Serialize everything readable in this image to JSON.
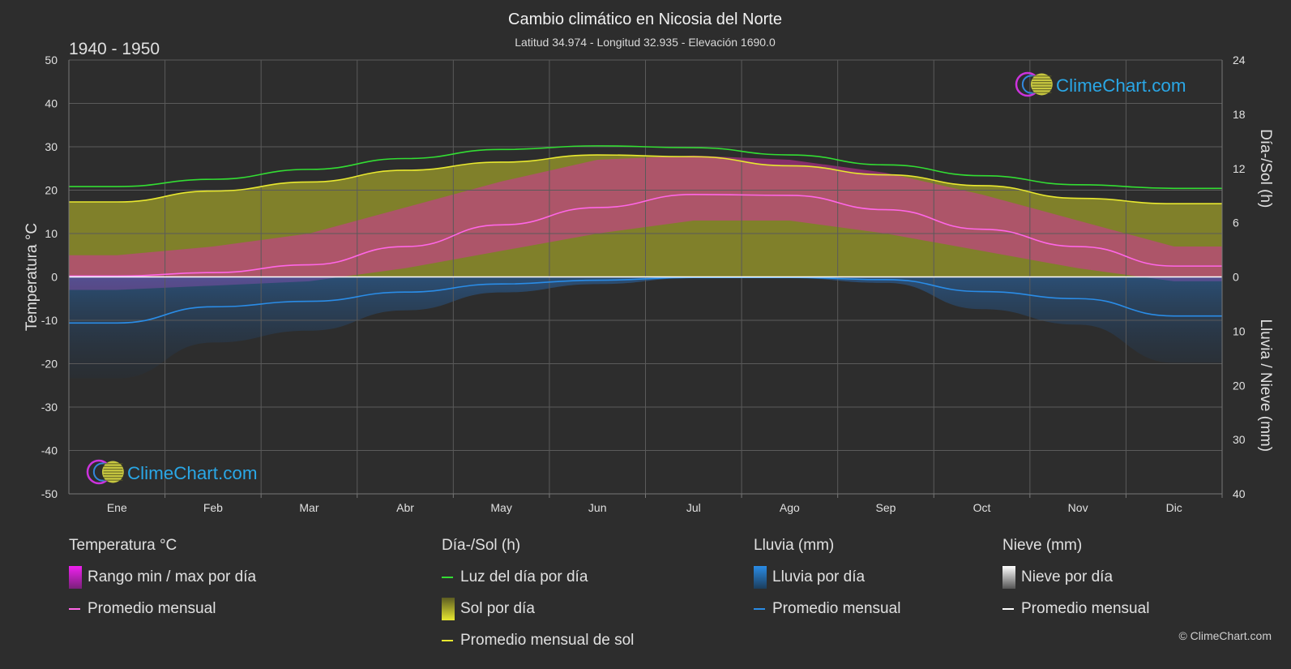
{
  "header": {
    "title": "Cambio climático en Nicosia del Norte",
    "subtitle": "Latitud 34.974 - Longitud 32.935 - Elevación 1690.0",
    "period": "1940 - 1950"
  },
  "brand": {
    "text": "ClimeChart.com",
    "copyright": "© ClimeChart.com"
  },
  "colors": {
    "background": "#2d2d2d",
    "daylight": "#33dd33",
    "sunshine_fill": "#9c9c2a",
    "sunshine_line": "#e8e830",
    "temp_range": "#d2329c",
    "temp_avg": "#ff66e6",
    "rain": "#1e6fc8",
    "rain_avg": "#2a8ce6",
    "snow_avg": "#ffffff",
    "brand": "#2aa7e6"
  },
  "legend": {
    "temp": {
      "title": "Temperatura °C",
      "range": "Rango min / max por día",
      "avg": "Promedio mensual"
    },
    "sun": {
      "title": "Día-/Sol (h)",
      "daylight": "Luz del día por día",
      "sunshine": "Sol por día",
      "sunshine_avg": "Promedio mensual de sol"
    },
    "rain": {
      "title": "Lluvia (mm)",
      "daily": "Lluvia por día",
      "avg": "Promedio mensual"
    },
    "snow": {
      "title": "Nieve (mm)",
      "daily": "Nieve por día",
      "avg": "Promedio mensual"
    }
  },
  "chart_data": {
    "type": "line",
    "categories": [
      "Ene",
      "Feb",
      "Mar",
      "Abr",
      "May",
      "Jun",
      "Jul",
      "Ago",
      "Sep",
      "Oct",
      "Nov",
      "Dic"
    ],
    "left_axis": {
      "label": "Temperatura °C",
      "ylim": [
        -50,
        50
      ],
      "ticks": [
        50,
        40,
        30,
        20,
        10,
        0,
        -10,
        -20,
        -30,
        -40,
        -50
      ]
    },
    "right_axis_top": {
      "label": "Día-/Sol (h)",
      "ylim": [
        0,
        24
      ],
      "ticks": [
        24,
        18,
        12,
        6,
        0
      ]
    },
    "right_axis_bottom": {
      "label": "Lluvia / Nieve (mm)",
      "ylim": [
        0,
        40
      ],
      "ticks": [
        10,
        20,
        30,
        40
      ]
    },
    "grid": true,
    "series": [
      {
        "name": "Luz del día por día",
        "axis": "sun_hours",
        "values": [
          10.0,
          10.8,
          11.9,
          13.1,
          14.1,
          14.5,
          14.3,
          13.5,
          12.4,
          11.2,
          10.2,
          9.8
        ]
      },
      {
        "name": "Promedio mensual de sol",
        "axis": "sun_hours",
        "values": [
          8.3,
          9.5,
          10.5,
          11.8,
          12.7,
          13.5,
          13.3,
          12.3,
          11.3,
          10.1,
          8.7,
          8.1
        ]
      },
      {
        "name": "Promedio mensual",
        "kind": "temp_avg",
        "axis": "temperature",
        "values": [
          0.2,
          1.0,
          2.8,
          7.0,
          12.0,
          16.0,
          19.0,
          18.8,
          15.5,
          11.0,
          7.0,
          2.5
        ]
      },
      {
        "name": "Rango min / max por día",
        "kind": "temp_range",
        "axis": "temperature",
        "min": [
          -3,
          -2,
          -1,
          2,
          6,
          10,
          13,
          13,
          10,
          6,
          2,
          -1
        ],
        "max": [
          5,
          7,
          10,
          16,
          22,
          27,
          28,
          27,
          24,
          19,
          13,
          7
        ]
      },
      {
        "name": "Lluvia Promedio mensual",
        "kind": "rain_avg",
        "axis": "precip_mm",
        "values": [
          8.5,
          5.5,
          4.5,
          2.8,
          1.3,
          0.6,
          0.1,
          0.1,
          0.5,
          2.7,
          4.0,
          7.2
        ]
      },
      {
        "name": "Nieve Promedio mensual",
        "kind": "snow_avg",
        "axis": "precip_mm",
        "values": [
          0,
          0,
          0,
          0,
          0,
          0,
          0,
          0,
          0,
          0,
          0,
          0
        ]
      }
    ]
  }
}
